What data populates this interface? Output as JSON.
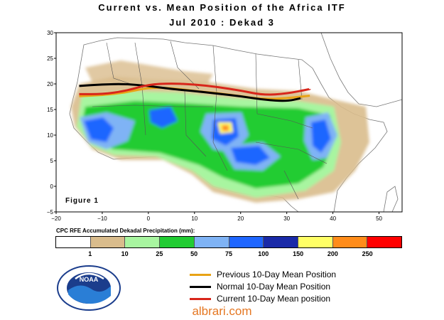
{
  "title_line1": "Current vs. Mean Position of the Africa ITF",
  "title_line2": "Jul 2010 : Dekad 3",
  "figure_label": "Figure 1",
  "map": {
    "lon_ticks": [
      "−20",
      "−10",
      "0",
      "10",
      "20",
      "30",
      "40",
      "50"
    ],
    "lat_ticks": [
      "30",
      "25",
      "20",
      "15",
      "10",
      "5",
      "0",
      "−5"
    ],
    "lon_values": [
      -20,
      -10,
      0,
      10,
      20,
      30,
      40,
      50
    ],
    "lat_values": [
      30,
      25,
      20,
      15,
      10,
      5,
      0,
      -5
    ],
    "lon_range": [
      -20,
      55
    ],
    "lat_range": [
      -5,
      30
    ]
  },
  "itf_lines": {
    "previous": [
      [
        -15,
        17.6
      ],
      [
        -10,
        17.8
      ],
      [
        -5,
        18.3
      ],
      [
        0,
        19.3
      ],
      [
        5,
        19.2
      ],
      [
        10,
        18.6
      ],
      [
        15,
        18.2
      ],
      [
        20,
        17.6
      ],
      [
        25,
        17.0
      ],
      [
        30,
        17.2
      ],
      [
        35,
        17.7
      ]
    ],
    "normal": [
      [
        -15,
        19.6
      ],
      [
        -10,
        19.9
      ],
      [
        -5,
        20.0
      ],
      [
        0,
        19.6
      ],
      [
        5,
        19.0
      ],
      [
        10,
        18.6
      ],
      [
        15,
        18.1
      ],
      [
        20,
        17.6
      ],
      [
        25,
        16.9
      ],
      [
        30,
        16.6
      ],
      [
        33,
        17.2
      ]
    ],
    "current": [
      [
        -15,
        18.0
      ],
      [
        -10,
        18.0
      ],
      [
        -5,
        18.6
      ],
      [
        0,
        19.9
      ],
      [
        5,
        20.1
      ],
      [
        10,
        19.9
      ],
      [
        15,
        19.4
      ],
      [
        20,
        18.7
      ],
      [
        25,
        17.8
      ],
      [
        30,
        18.1
      ],
      [
        35,
        19.0
      ]
    ]
  },
  "colors": {
    "previous": "#e8a316",
    "normal": "#000000",
    "current": "#d8261b",
    "land": "#ffffff",
    "ocean": "#ffffff"
  },
  "scale": {
    "title": "CPC RFE Accumulated Dekadal Precipitation (mm):",
    "colors": [
      "#ffffff",
      "#d9bc8c",
      "#a8f5a0",
      "#22cc33",
      "#7fb3f5",
      "#1f66ff",
      "#1a2aa8",
      "#ffff66",
      "#ff8c1a",
      "#ff0000"
    ],
    "ticks": [
      "1",
      "10",
      "25",
      "50",
      "75",
      "100",
      "150",
      "200",
      "250"
    ]
  },
  "legend": {
    "previous": "Previous 10-Day Mean Position",
    "normal": "Normal 10-Day Mean Position",
    "current": "Current 10-Day Mean position"
  },
  "logo_text": "NOAA",
  "watermark": "albrari.com"
}
